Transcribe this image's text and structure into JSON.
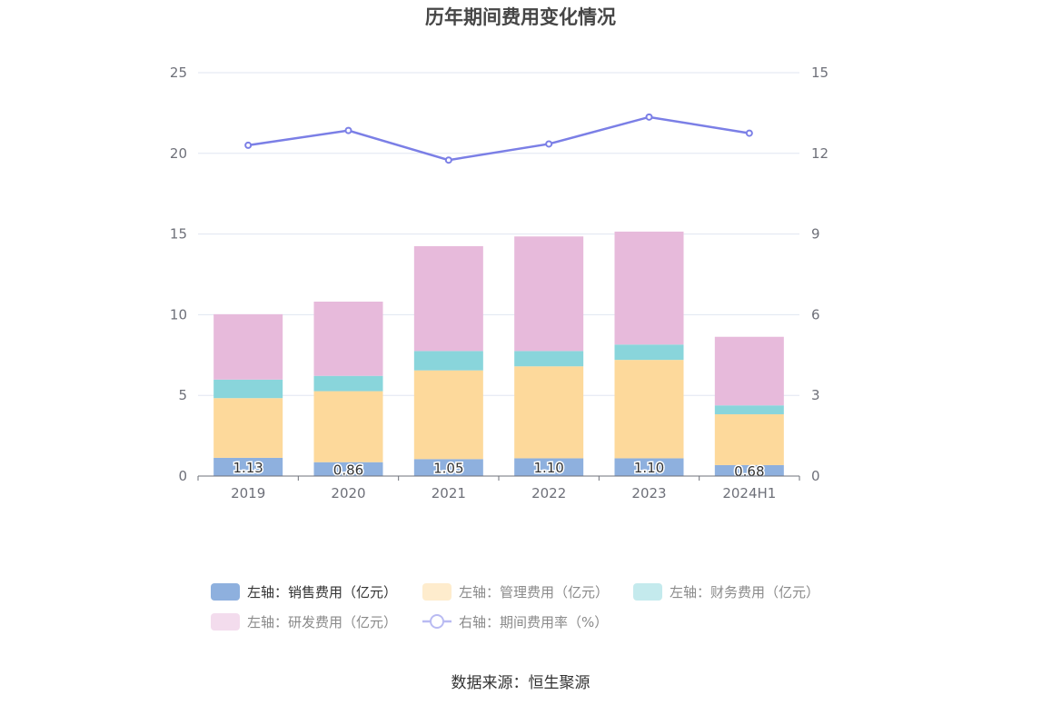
{
  "chart_data": {
    "type": "bar",
    "title": "历年期间费用变化情况",
    "categories": [
      "2019",
      "2020",
      "2021",
      "2022",
      "2023",
      "2024H1"
    ],
    "stacked": true,
    "left_axis": {
      "min": 0,
      "max": 25,
      "ticks": [
        "0",
        "5",
        "10",
        "15",
        "20",
        "25"
      ]
    },
    "right_axis": {
      "min": 0,
      "max": 15,
      "ticks": [
        "0",
        "3",
        "6",
        "9",
        "12",
        "15"
      ]
    },
    "grid": true,
    "legend_position": "bottom",
    "series": [
      {
        "name": "左轴：销售费用（亿元）",
        "type": "bar",
        "axis": "left",
        "color": "#8eb0de",
        "values": [
          1.13,
          0.86,
          1.05,
          1.1,
          1.1,
          0.68
        ],
        "labels": [
          "1.13",
          "0.86",
          "1.05",
          "1.10",
          "1.10",
          "0.68"
        ]
      },
      {
        "name": "左轴：管理费用（亿元）",
        "type": "bar",
        "axis": "left",
        "color": "#fdd99b",
        "values": [
          3.7,
          4.4,
          5.5,
          5.7,
          6.1,
          3.15
        ]
      },
      {
        "name": "左轴：财务费用（亿元）",
        "type": "bar",
        "axis": "left",
        "color": "#89d5db",
        "values": [
          1.15,
          0.95,
          1.2,
          0.95,
          0.95,
          0.55
        ]
      },
      {
        "name": "左轴：研发费用（亿元）",
        "type": "bar",
        "axis": "left",
        "color": "#e7badb",
        "values": [
          4.05,
          4.6,
          6.5,
          7.1,
          7.0,
          4.25
        ]
      },
      {
        "name": "右轴：期间费用率（%）",
        "type": "line",
        "axis": "right",
        "color": "#7b7fe6",
        "values": [
          12.3,
          12.85,
          11.75,
          12.35,
          13.35,
          12.75
        ]
      }
    ]
  },
  "source": "数据来源：恒生聚源"
}
